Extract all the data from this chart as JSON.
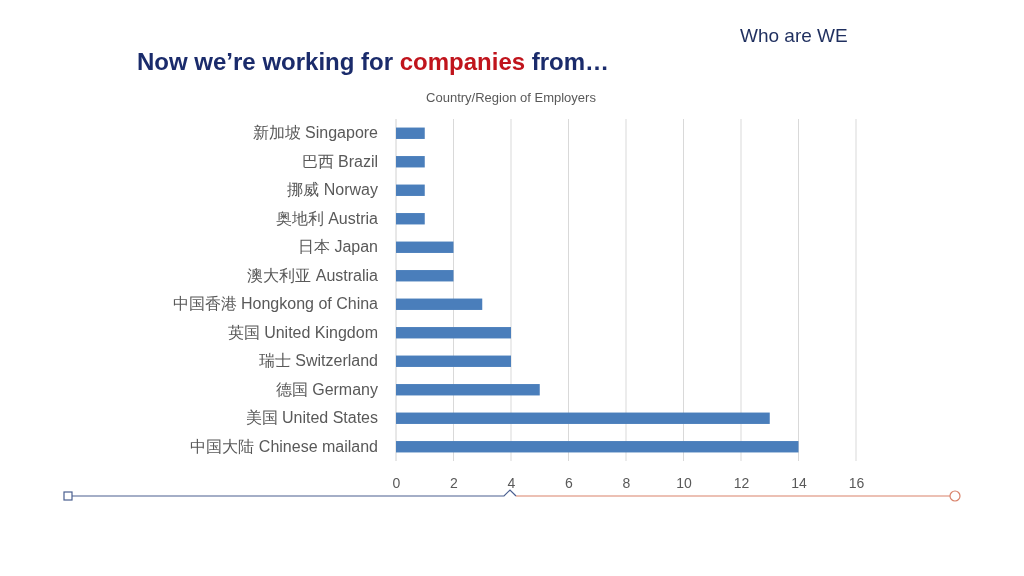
{
  "chart_data": {
    "type": "bar",
    "orientation": "horizontal",
    "title": "Now we’re working for companies from…",
    "subtitle": "Country/Region of Employers",
    "annotations": [
      "Who are WE"
    ],
    "categories": [
      "新加坡 Singapore",
      "巴西 Brazil",
      "挪威 Norway",
      "奥地利 Austria",
      "日本 Japan",
      "澳大利亚 Australia",
      "中国香港 Hongkong of China",
      "英国 United Kingdom",
      "瑞士 Switzerland",
      "德国 Germany",
      "美国 United States",
      "中国大陆 Chinese mailand"
    ],
    "values": [
      1,
      1,
      1,
      1,
      2,
      2,
      3,
      4,
      4,
      5,
      13,
      14
    ],
    "color": "#4a7ebb",
    "xlim": [
      0,
      16
    ],
    "xticks": [
      0,
      2,
      4,
      6,
      8,
      10,
      12,
      14,
      16
    ],
    "grid": "x"
  }
}
